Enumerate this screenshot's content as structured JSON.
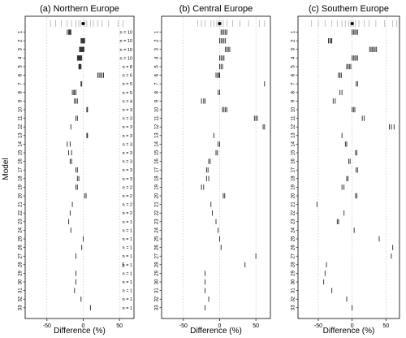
{
  "figure": {
    "ylabel": "Model",
    "xlabel": "Difference (%)"
  },
  "chart_data": [
    {
      "type": "strip",
      "title": "(a) Northern Europe",
      "xlabel": "Difference (%)",
      "ylabel": "Model",
      "xlim": [
        -80,
        70
      ],
      "xticks": [
        -50,
        0,
        50
      ],
      "grid_x": [
        -50,
        0,
        50
      ],
      "models": [
        "1",
        "2",
        "3",
        "4",
        "5",
        "6",
        "7",
        "8",
        "9",
        "10",
        "11",
        "12",
        "13",
        "14",
        "15",
        "16",
        "17",
        "18",
        "19",
        "20",
        "21",
        "22",
        "23",
        "24",
        "25",
        "26",
        "27",
        "28",
        "29",
        "30",
        "31",
        "32",
        "33"
      ],
      "n_labels": [
        "n = 10",
        "n = 10",
        "n = 10",
        "n = 10",
        "n = 8",
        "n = 6",
        "n = 5",
        "n = 5",
        "n = 4",
        "n = 3",
        "n = 3",
        "n = 3",
        "n = 3",
        "n = 3",
        "n = 3",
        "n = 3",
        "n = 3",
        "n = 3",
        "n = 2",
        "n = 2",
        "n = 2",
        "n = 2",
        "n = 1",
        "n = 1",
        "n = 1",
        "n = 1",
        "n = 1",
        "n = 1",
        "n = 1",
        "n = 1",
        "n = 1",
        "n = 1",
        "n = 1"
      ],
      "ensemble": {
        "marker": 0,
        "values": [
          -45,
          -38,
          -30,
          -22,
          -16,
          -10,
          -6,
          -3,
          2,
          5,
          10,
          14,
          20,
          26,
          35,
          48,
          55
        ]
      },
      "rows": [
        [
          -22,
          -20,
          -19,
          -18,
          -17
        ],
        [
          -3,
          -2,
          -1,
          0,
          1,
          2
        ],
        [
          -5,
          -4,
          -3,
          -2,
          -1,
          0,
          1
        ],
        [
          -8,
          -7,
          -6,
          -5,
          -4,
          -3,
          -2
        ],
        [
          -6,
          -5,
          -4,
          -3
        ],
        [
          20,
          22,
          24,
          26,
          28
        ],
        [
          -3,
          -2
        ],
        [
          -15,
          -13,
          -12,
          -10
        ],
        [
          -12,
          -10,
          -8
        ],
        [
          5,
          6
        ],
        [
          -10,
          -8
        ],
        [
          -17
        ],
        [
          5,
          6
        ],
        [
          -22,
          -18
        ],
        [
          -20,
          -16
        ],
        [
          -18,
          -16
        ],
        [
          -10,
          -8
        ],
        [
          -8,
          -6
        ],
        [
          -10,
          -8
        ],
        [
          2,
          4
        ],
        [
          -15
        ],
        [
          -18
        ],
        [
          -20
        ],
        [
          -17
        ],
        [
          0
        ],
        [
          -2
        ],
        [
          -10
        ],
        [
          55
        ],
        [
          -10
        ],
        [
          -10
        ],
        [
          -12
        ],
        [
          -3
        ],
        [
          10
        ]
      ]
    },
    {
      "type": "strip",
      "title": "(b) Central Europe",
      "xlabel": "Difference (%)",
      "ylabel": "",
      "xlim": [
        -80,
        70
      ],
      "xticks": [
        -50,
        0,
        50
      ],
      "grid_x": [
        -50,
        0,
        50
      ],
      "models": [
        "1",
        "2",
        "3",
        "4",
        "5",
        "6",
        "7",
        "8",
        "9",
        "10",
        "11",
        "12",
        "13",
        "14",
        "15",
        "16",
        "17",
        "18",
        "19",
        "20",
        "21",
        "22",
        "23",
        "24",
        "25",
        "26",
        "27",
        "28",
        "29",
        "30",
        "31",
        "32",
        "33"
      ],
      "n_labels": [],
      "ensemble": {
        "marker": 0,
        "values": [
          -30,
          -25,
          -20,
          -12,
          -8,
          -4,
          -1,
          2,
          5,
          10,
          18,
          28,
          40,
          55,
          62
        ]
      },
      "rows": [
        [
          2,
          4,
          6,
          8,
          10
        ],
        [
          0,
          2,
          4,
          6,
          8
        ],
        [
          8,
          10,
          12,
          14
        ],
        [
          0,
          2,
          4,
          6
        ],
        [
          0,
          2,
          4
        ],
        [
          -5,
          -3,
          -1,
          0
        ],
        [
          62
        ],
        [
          -2,
          0
        ],
        [
          -25,
          -22,
          -20
        ],
        [
          4,
          6,
          8,
          10
        ],
        [
          48,
          50,
          52
        ],
        [
          60,
          62
        ],
        [
          -8
        ],
        [
          -2,
          0
        ],
        [
          -5,
          -3
        ],
        [
          -15,
          -13
        ],
        [
          -18,
          -16
        ],
        [
          -18,
          -15
        ],
        [
          -25,
          -22
        ],
        [
          5,
          7
        ],
        [
          -12
        ],
        [
          -10
        ],
        [
          -5
        ],
        [
          -2
        ],
        [
          0
        ],
        [
          2
        ],
        [
          50
        ],
        [
          35
        ],
        [
          -20
        ],
        [
          -20
        ],
        [
          -20
        ],
        [
          -15
        ],
        [
          -20
        ]
      ]
    },
    {
      "type": "strip",
      "title": "(c) Southern Europe",
      "xlabel": "Difference (%)",
      "ylabel": "",
      "xlim": [
        -80,
        70
      ],
      "xticks": [
        -50,
        0,
        50
      ],
      "grid_x": [
        -50,
        0,
        50
      ],
      "models": [
        "1",
        "2",
        "3",
        "4",
        "5",
        "6",
        "7",
        "8",
        "9",
        "10",
        "11",
        "12",
        "13",
        "14",
        "15",
        "16",
        "17",
        "18",
        "19",
        "20",
        "21",
        "22",
        "23",
        "24",
        "25",
        "26",
        "27",
        "28",
        "29",
        "30",
        "31",
        "32",
        "33"
      ],
      "n_labels": [],
      "ensemble": {
        "marker": 0,
        "values": [
          -60,
          -50,
          -40,
          -30,
          -22,
          -15,
          -10,
          -5,
          -2,
          2,
          5,
          10,
          18,
          25,
          35,
          48,
          60,
          66
        ]
      },
      "rows": [
        [
          0,
          2,
          4,
          6,
          8
        ],
        [
          -35,
          -33,
          -31,
          -30
        ],
        [
          26,
          28,
          30,
          32,
          34,
          36
        ],
        [
          0,
          2,
          4,
          6,
          8
        ],
        [
          -8,
          -6,
          -4,
          -2
        ],
        [
          -20,
          -18,
          -16
        ],
        [
          6,
          8
        ],
        [
          -18,
          -15
        ],
        [
          -28,
          -25
        ],
        [
          0,
          2,
          4
        ],
        [
          15,
          18
        ],
        [
          55,
          58,
          62
        ],
        [
          -15
        ],
        [
          -10,
          -8
        ],
        [
          5,
          7
        ],
        [
          -5,
          -3
        ],
        [
          6,
          8
        ],
        [
          -8,
          -6
        ],
        [
          -15,
          -12
        ],
        [
          5,
          7
        ],
        [
          -52
        ],
        [
          -12
        ],
        [
          -22,
          -20
        ],
        [
          3
        ],
        [
          40
        ],
        [
          60
        ],
        [
          58
        ],
        [
          -38
        ],
        [
          -40
        ],
        [
          -42
        ],
        [
          -30
        ],
        [
          -8
        ],
        [
          0
        ]
      ]
    }
  ]
}
